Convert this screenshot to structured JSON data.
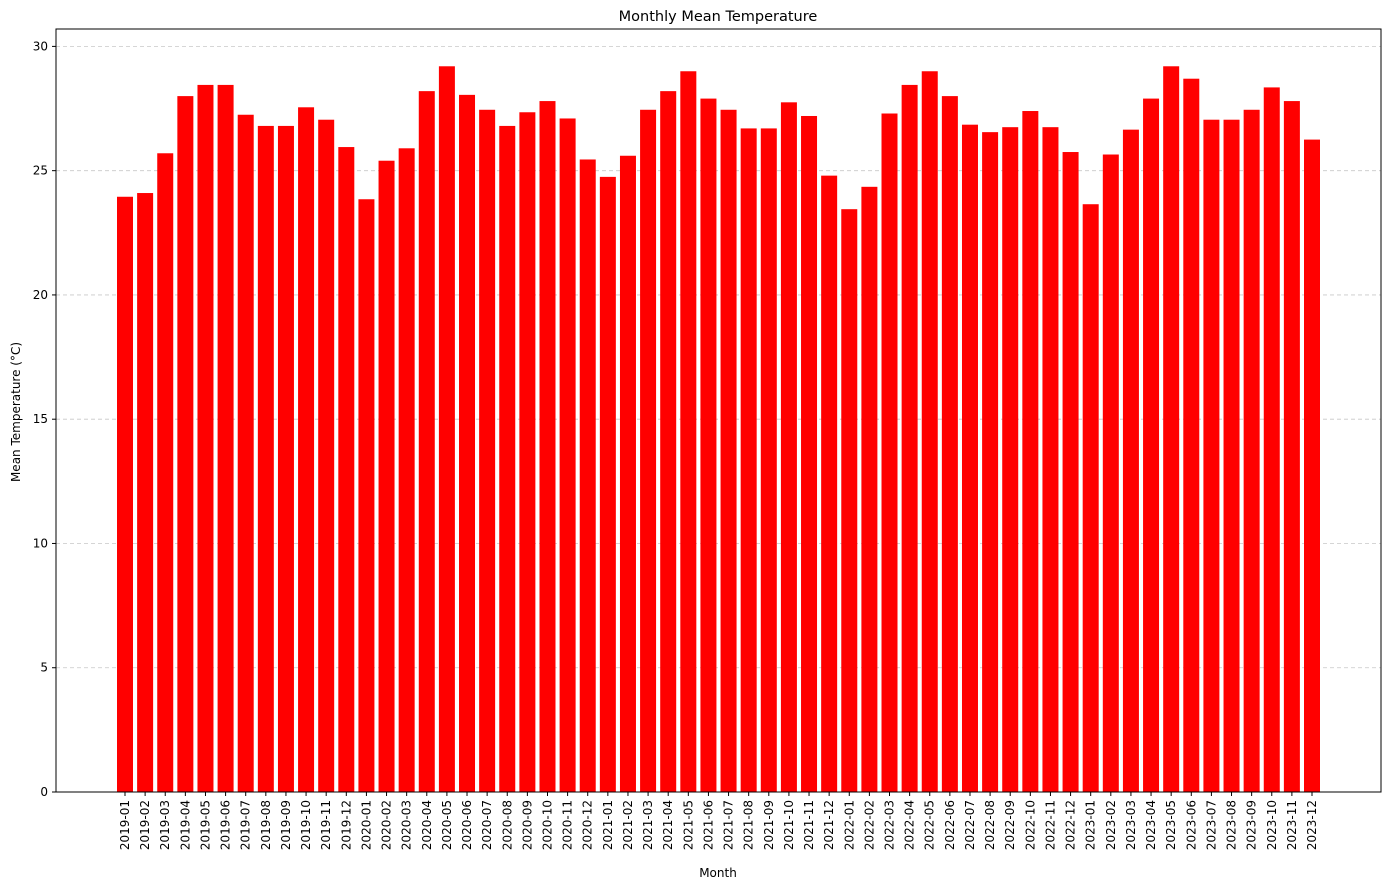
{
  "chart_data": {
    "type": "bar",
    "title": "Monthly Mean Temperature",
    "xlabel": "Month",
    "ylabel": "Mean Temperature (°C)",
    "ylim": [
      0,
      30.7
    ],
    "yticks": [
      0,
      5,
      10,
      15,
      20,
      25,
      30
    ],
    "grid": "y-dashed",
    "bar_color": "#ff0000",
    "grid_color": "#c8c8c8",
    "categories": [
      "2019-01",
      "2019-02",
      "2019-03",
      "2019-04",
      "2019-05",
      "2019-06",
      "2019-07",
      "2019-08",
      "2019-09",
      "2019-10",
      "2019-11",
      "2019-12",
      "2020-01",
      "2020-02",
      "2020-03",
      "2020-04",
      "2020-05",
      "2020-06",
      "2020-07",
      "2020-08",
      "2020-09",
      "2020-10",
      "2020-11",
      "2020-12",
      "2021-01",
      "2021-02",
      "2021-03",
      "2021-04",
      "2021-05",
      "2021-06",
      "2021-07",
      "2021-08",
      "2021-09",
      "2021-10",
      "2021-11",
      "2021-12",
      "2022-01",
      "2022-02",
      "2022-03",
      "2022-04",
      "2022-05",
      "2022-06",
      "2022-07",
      "2022-08",
      "2022-09",
      "2022-10",
      "2022-11",
      "2022-12",
      "2023-01",
      "2023-02",
      "2023-03",
      "2023-04",
      "2023-05",
      "2023-06",
      "2023-07",
      "2023-08",
      "2023-09",
      "2023-10",
      "2023-11",
      "2023-12"
    ],
    "values": [
      23.95,
      24.1,
      25.7,
      28.0,
      28.45,
      28.45,
      27.25,
      26.8,
      26.8,
      27.55,
      27.05,
      25.95,
      23.85,
      25.4,
      25.9,
      28.2,
      29.2,
      28.05,
      27.45,
      26.8,
      27.35,
      27.8,
      27.1,
      25.45,
      24.75,
      25.6,
      27.45,
      28.2,
      29.0,
      27.9,
      27.45,
      26.7,
      26.7,
      27.75,
      27.2,
      24.8,
      23.45,
      24.35,
      27.3,
      28.45,
      29.0,
      28.0,
      26.85,
      26.55,
      26.75,
      27.4,
      26.75,
      25.75,
      23.65,
      25.65,
      26.65,
      27.9,
      29.2,
      28.7,
      27.05,
      27.05,
      27.45,
      28.35,
      27.8,
      26.25
    ]
  }
}
